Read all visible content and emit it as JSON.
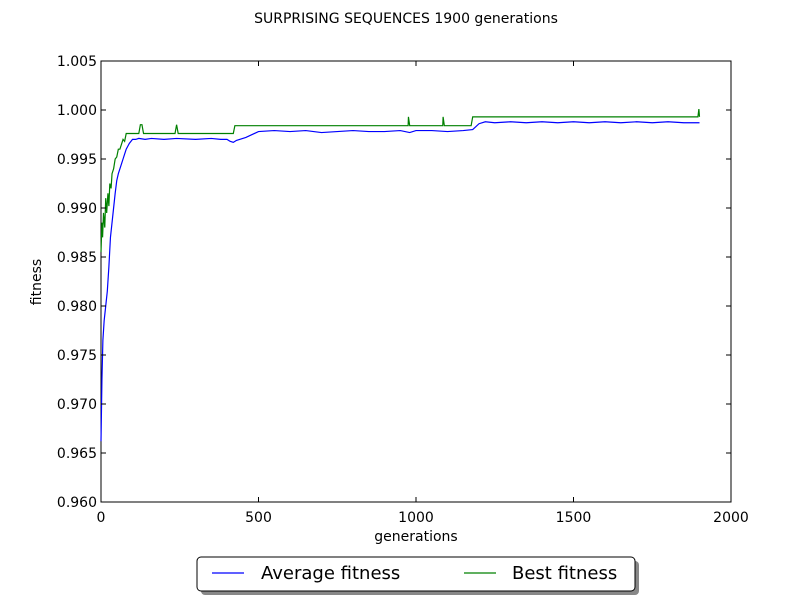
{
  "chart_data": {
    "type": "line",
    "title": "SURPRISING SEQUENCES 1900 generations",
    "xlabel": "generations",
    "ylabel": "fitness",
    "xlim": [
      0,
      2000
    ],
    "ylim": [
      0.96,
      1.005
    ],
    "xticks": [
      0,
      500,
      1000,
      1500,
      2000
    ],
    "xtick_labels": [
      "0",
      "500",
      "1000",
      "1500",
      "2000"
    ],
    "yticks": [
      0.96,
      0.965,
      0.97,
      0.975,
      0.98,
      0.985,
      0.99,
      0.995,
      1.0,
      1.005
    ],
    "ytick_labels": [
      "0.960",
      "0.965",
      "0.970",
      "0.975",
      "0.980",
      "0.985",
      "0.990",
      "0.995",
      "1.000",
      "1.005"
    ],
    "grid": false,
    "legend_position": "bottom-center-outside",
    "series": [
      {
        "name": "Average fitness",
        "color": "#0000ff",
        "x": [
          0,
          3,
          6,
          10,
          15,
          20,
          25,
          30,
          35,
          40,
          45,
          50,
          55,
          60,
          65,
          70,
          75,
          80,
          85,
          90,
          95,
          100,
          110,
          120,
          140,
          160,
          200,
          240,
          300,
          350,
          380,
          400,
          410,
          420,
          430,
          440,
          460,
          500,
          550,
          600,
          650,
          700,
          750,
          800,
          850,
          900,
          950,
          980,
          1000,
          1050,
          1100,
          1150,
          1180,
          1200,
          1220,
          1250,
          1300,
          1350,
          1400,
          1450,
          1500,
          1550,
          1600,
          1650,
          1700,
          1750,
          1800,
          1850,
          1900
        ],
        "y": [
          0.9662,
          0.9725,
          0.9765,
          0.9785,
          0.98,
          0.9815,
          0.984,
          0.987,
          0.9885,
          0.99,
          0.9915,
          0.9928,
          0.9935,
          0.994,
          0.9945,
          0.995,
          0.9955,
          0.996,
          0.9963,
          0.9966,
          0.9968,
          0.997,
          0.997,
          0.9971,
          0.997,
          0.9971,
          0.997,
          0.9971,
          0.997,
          0.9971,
          0.997,
          0.997,
          0.9968,
          0.9967,
          0.9969,
          0.997,
          0.9972,
          0.9978,
          0.9979,
          0.9978,
          0.9979,
          0.9977,
          0.9978,
          0.9979,
          0.9978,
          0.9978,
          0.9979,
          0.9977,
          0.9979,
          0.9979,
          0.9978,
          0.9979,
          0.998,
          0.9986,
          0.9988,
          0.9987,
          0.9988,
          0.9987,
          0.9988,
          0.9987,
          0.9988,
          0.9987,
          0.9988,
          0.9987,
          0.9988,
          0.9987,
          0.9988,
          0.9987,
          0.9987
        ]
      },
      {
        "name": "Best fitness",
        "color": "#008000",
        "x": [
          0,
          3,
          5,
          8,
          12,
          15,
          18,
          22,
          25,
          28,
          32,
          35,
          40,
          45,
          50,
          55,
          60,
          65,
          70,
          75,
          80,
          85,
          90,
          120,
          125,
          130,
          135,
          235,
          240,
          245,
          420,
          425,
          975,
          976,
          980,
          1085,
          1086,
          1090,
          1175,
          1180,
          1895,
          1898,
          1900
        ],
        "y": [
          0.9855,
          0.9885,
          0.987,
          0.9895,
          0.988,
          0.991,
          0.9895,
          0.9915,
          0.9902,
          0.9925,
          0.992,
          0.9935,
          0.994,
          0.995,
          0.9952,
          0.996,
          0.996,
          0.9965,
          0.997,
          0.9968,
          0.9976,
          0.9976,
          0.9976,
          0.9976,
          0.9985,
          0.9985,
          0.9976,
          0.9976,
          0.9985,
          0.9976,
          0.9976,
          0.9984,
          0.9984,
          0.9993,
          0.9984,
          0.9984,
          0.9993,
          0.9984,
          0.9984,
          0.9993,
          0.9993,
          1.0001,
          0.9993
        ]
      }
    ]
  }
}
